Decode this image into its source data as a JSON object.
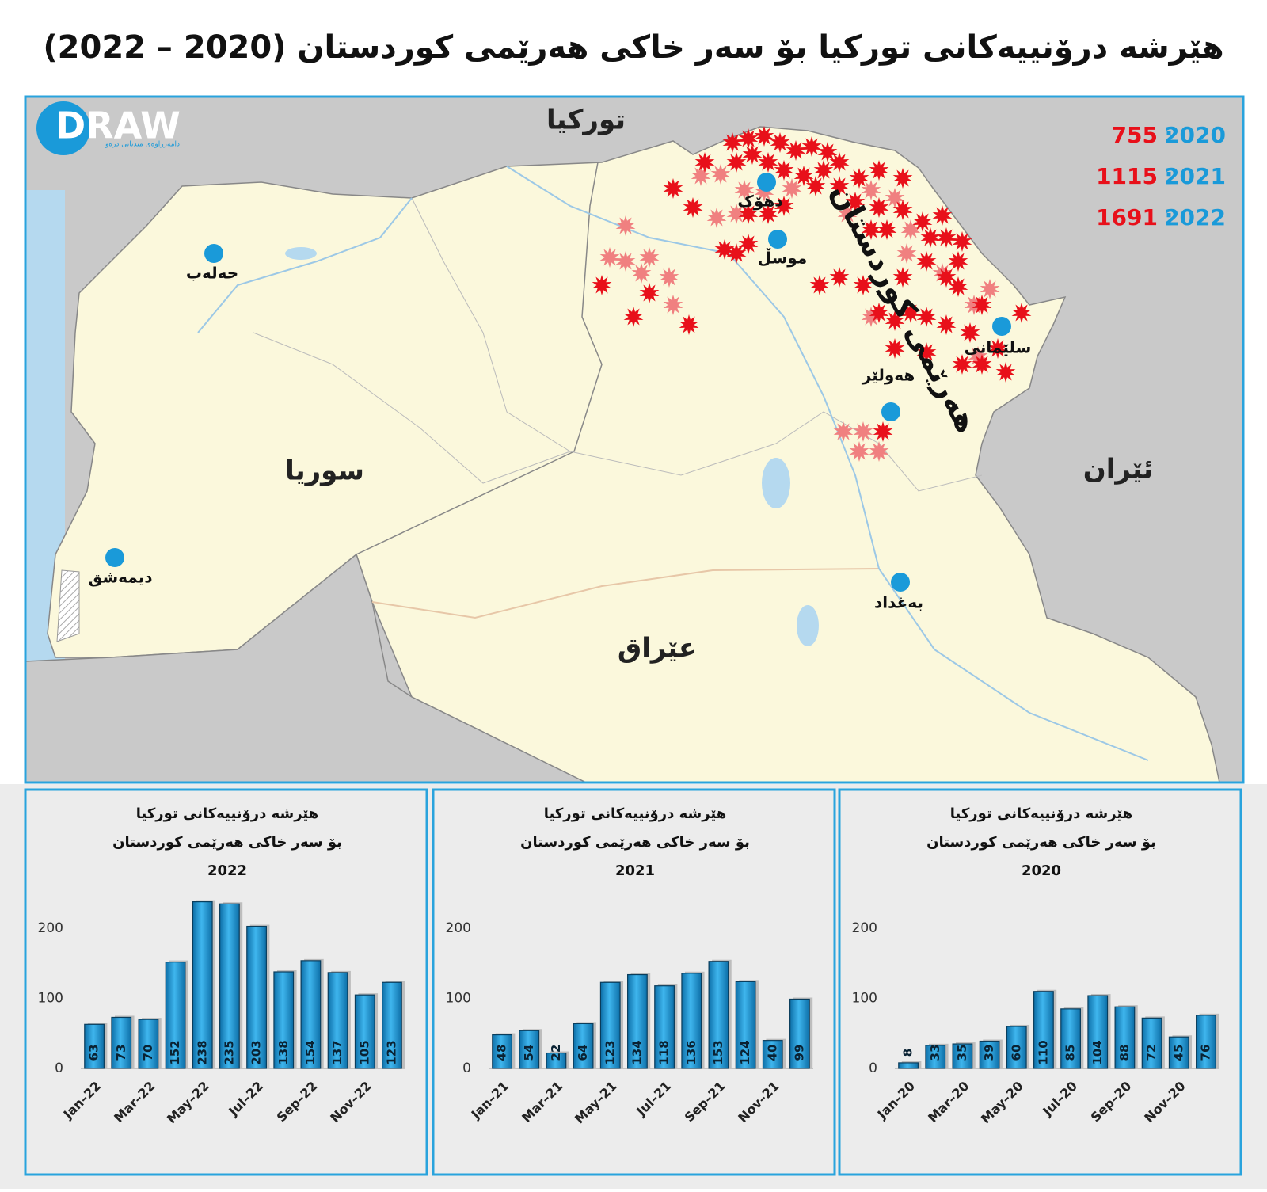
{
  "title": "هێرشە درۆنییەکانی تورکیا بۆ سەر خاکی هەرێمی کوردستان (2020 – 2022)",
  "logo": {
    "name": "DRAW",
    "subtitle": "دامەزراوەی میدیایی درەو"
  },
  "map": {
    "countries": [
      "تورکیا",
      "سوریا",
      "عێراق",
      "ئێران"
    ],
    "region": "هەرێمی کوردستان",
    "cities": [
      "دهۆک",
      "موسڵ",
      "حەلەب",
      "سلێمانی",
      "هەولێر",
      "دیمەشق",
      "بەغداد"
    ],
    "legend_separator": ":",
    "legend": [
      {
        "year": "2020",
        "count": 755
      },
      {
        "year": "2021",
        "count": 1115
      },
      {
        "year": "2022",
        "count": 1691
      }
    ]
  },
  "chart_data": [
    {
      "type": "bar",
      "title": [
        "هێرشە درۆنییەکانی تورکیا",
        "بۆ سەر خاکی هەرێمی کوردستان",
        "2022"
      ],
      "categories": [
        "Jan–22",
        null,
        "Mar–22",
        null,
        "May–22",
        null,
        "Jul–22",
        null,
        "Sep–22",
        null,
        "Nov–22",
        null
      ],
      "values": [
        63,
        73,
        70,
        152,
        238,
        235,
        203,
        138,
        154,
        137,
        105,
        123
      ],
      "color": "#1a9ad9",
      "ylim": [
        0,
        250
      ],
      "yticks": [
        0,
        100,
        200
      ]
    },
    {
      "type": "bar",
      "title": [
        "هێرشە درۆنییەکانی تورکیا",
        "بۆ سەر خاکی هەرێمی کوردستان",
        "2021"
      ],
      "categories": [
        "Jan–21",
        null,
        "Mar–21",
        null,
        "May–21",
        null,
        "Jul–21",
        null,
        "Sep–21",
        null,
        "Nov–21",
        null
      ],
      "values": [
        48,
        54,
        22,
        64,
        123,
        134,
        118,
        136,
        153,
        124,
        40,
        99
      ],
      "color": "#1a9ad9",
      "ylim": [
        0,
        250
      ],
      "yticks": [
        0,
        100,
        200
      ]
    },
    {
      "type": "bar",
      "title": [
        "هێرشە درۆنییەکانی تورکیا",
        "بۆ سەر خاکی هەرێمی کوردستان",
        "2020"
      ],
      "categories": [
        "Jan–20",
        null,
        "Mar–20",
        null,
        "May–20",
        null,
        "Jul–20",
        null,
        "Sep–20",
        null,
        "Nov–20",
        null
      ],
      "values": [
        8,
        33,
        35,
        39,
        60,
        110,
        85,
        104,
        88,
        72,
        45,
        76
      ],
      "color": "#1a9ad9",
      "ylim": [
        0,
        250
      ],
      "yticks": [
        0,
        100,
        200
      ]
    }
  ]
}
